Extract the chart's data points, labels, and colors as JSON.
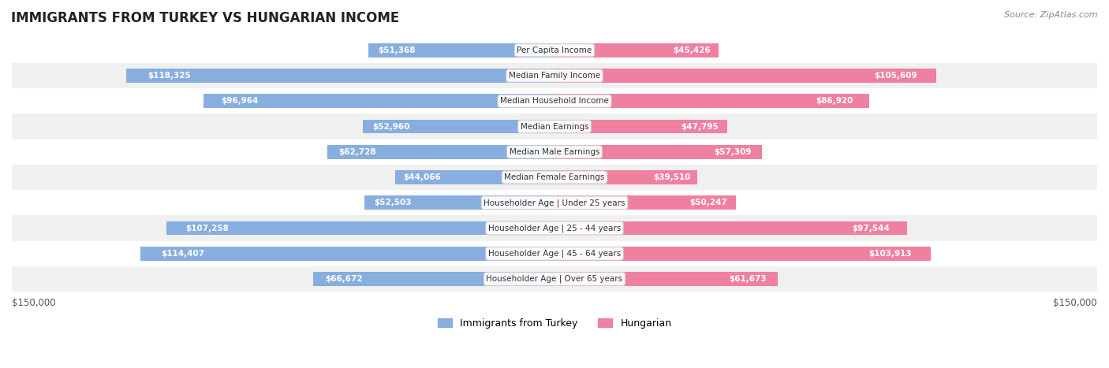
{
  "title": "IMMIGRANTS FROM TURKEY VS HUNGARIAN INCOME",
  "source": "Source: ZipAtlas.com",
  "categories": [
    "Per Capita Income",
    "Median Family Income",
    "Median Household Income",
    "Median Earnings",
    "Median Male Earnings",
    "Median Female Earnings",
    "Householder Age | Under 25 years",
    "Householder Age | 25 - 44 years",
    "Householder Age | 45 - 64 years",
    "Householder Age | Over 65 years"
  ],
  "turkey_values": [
    51368,
    118325,
    96964,
    52960,
    62728,
    44066,
    52503,
    107258,
    114407,
    66672
  ],
  "hungarian_values": [
    45426,
    105609,
    86920,
    47795,
    57309,
    39510,
    50247,
    97544,
    103913,
    61673
  ],
  "turkey_labels": [
    "$51,368",
    "$118,325",
    "$96,964",
    "$52,960",
    "$62,728",
    "$44,066",
    "$52,503",
    "$107,258",
    "$114,407",
    "$66,672"
  ],
  "hungarian_labels": [
    "$45,426",
    "$105,609",
    "$86,920",
    "$47,795",
    "$57,309",
    "$39,510",
    "$50,247",
    "$97,544",
    "$103,913",
    "$61,673"
  ],
  "turkey_color": "#87AEDE",
  "hungarian_color": "#F080A0",
  "turkey_label_color_dark": "#555555",
  "turkey_label_color_light": "#ffffff",
  "hungarian_label_color_dark": "#555555",
  "hungarian_label_color_light": "#ffffff",
  "max_value": 150000,
  "bar_height": 0.55,
  "row_bg_color_even": "#f0f0f0",
  "row_bg_color_odd": "#ffffff",
  "legend_turkey": "Immigrants from Turkey",
  "legend_hungarian": "Hungarian",
  "xlabel_left": "$150,000",
  "xlabel_right": "$150,000"
}
